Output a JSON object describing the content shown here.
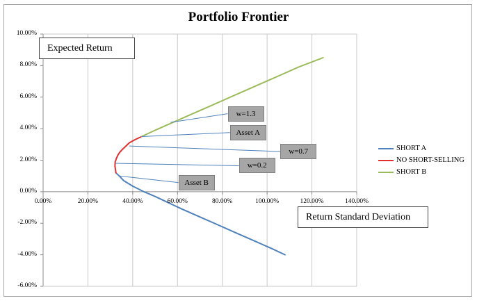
{
  "chart_data": {
    "type": "line",
    "title": "Portfolio Frontier",
    "xlabel": "Return Standard Deviation",
    "ylabel": "Expected Return",
    "xlim": [
      0,
      1.4
    ],
    "ylim": [
      -0.06,
      0.1
    ],
    "x_ticks": [
      "0.00%",
      "20.00%",
      "40.00%",
      "60.00%",
      "80.00%",
      "100.00%",
      "120.00%",
      "140.00%"
    ],
    "y_ticks": [
      "10.00%",
      "8.00%",
      "6.00%",
      "4.00%",
      "2.00%",
      "0.00%",
      "-2.00%",
      "-4.00%",
      "-6.00%"
    ],
    "grid": "vertical",
    "legend_position": "right",
    "series": [
      {
        "name": "SHORT A",
        "color": "#4f81bd",
        "points": [
          [
            0.325,
            0.012
          ],
          [
            0.34,
            0.01
          ],
          [
            0.36,
            0.007
          ],
          [
            0.4,
            0.0035
          ],
          [
            0.45,
            0.0
          ],
          [
            0.5,
            -0.003
          ],
          [
            0.56,
            -0.007
          ],
          [
            0.62,
            -0.011
          ],
          [
            0.7,
            -0.016
          ],
          [
            0.78,
            -0.021
          ],
          [
            0.86,
            -0.026
          ],
          [
            0.94,
            -0.031
          ],
          [
            1.02,
            -0.036
          ],
          [
            1.08,
            -0.04
          ]
        ]
      },
      {
        "name": "NO SHORT-SELLING",
        "color": "#e03030",
        "points": [
          [
            0.44,
            0.035
          ],
          [
            0.41,
            0.033
          ],
          [
            0.385,
            0.031
          ],
          [
            0.37,
            0.029
          ],
          [
            0.355,
            0.027
          ],
          [
            0.342,
            0.025
          ],
          [
            0.333,
            0.023
          ],
          [
            0.327,
            0.021
          ],
          [
            0.322,
            0.019
          ],
          [
            0.321,
            0.017
          ],
          [
            0.321,
            0.016
          ],
          [
            0.323,
            0.014
          ],
          [
            0.325,
            0.012
          ]
        ]
      },
      {
        "name": "SHORT B",
        "color": "#9bbb59",
        "points": [
          [
            0.44,
            0.035
          ],
          [
            0.5,
            0.039
          ],
          [
            0.58,
            0.044
          ],
          [
            0.66,
            0.049
          ],
          [
            0.74,
            0.054
          ],
          [
            0.82,
            0.059
          ],
          [
            0.9,
            0.064
          ],
          [
            0.98,
            0.069
          ],
          [
            1.06,
            0.074
          ],
          [
            1.14,
            0.079
          ],
          [
            1.25,
            0.085
          ]
        ]
      }
    ],
    "annotations": [
      {
        "label": "w=1.3",
        "point": [
          0.57,
          0.044
        ],
        "box": [
          0.905,
          0.0495
        ]
      },
      {
        "label": "Asset A",
        "point": [
          0.44,
          0.035
        ],
        "box": [
          0.915,
          0.0375
        ]
      },
      {
        "label": "w=0.7",
        "point": [
          0.385,
          0.029
        ],
        "box": [
          1.14,
          0.0255
        ]
      },
      {
        "label": "w=0.2",
        "point": [
          0.323,
          0.018
        ],
        "box": [
          0.955,
          0.0165
        ]
      },
      {
        "label": "Asset B",
        "point": [
          0.34,
          0.01
        ],
        "box": [
          0.685,
          0.0058
        ]
      }
    ]
  }
}
